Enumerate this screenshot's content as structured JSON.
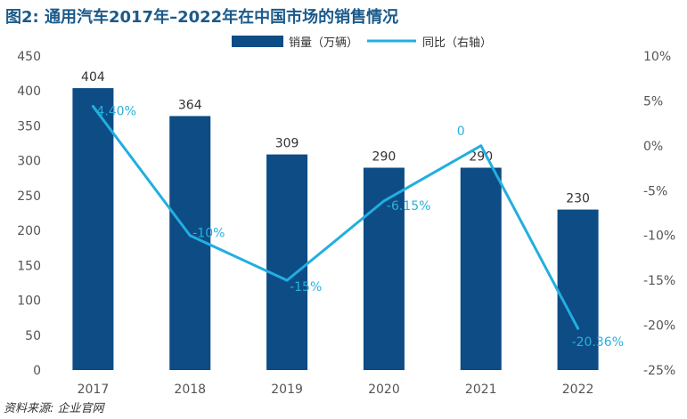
{
  "title": "图2: 通用汽车2017年–2022年在中国市场的销售情况",
  "source": "资料来源: 企业官网",
  "chart_data": {
    "type": "bar",
    "categories": [
      "2017",
      "2018",
      "2019",
      "2020",
      "2021",
      "2022"
    ],
    "series": [
      {
        "name": "销量（万辆）",
        "type": "bar",
        "axis": "left",
        "values": [
          404,
          364,
          309,
          290,
          290,
          230
        ],
        "labels": [
          "404",
          "364",
          "309",
          "290",
          "290",
          "230"
        ],
        "color": "#0d4c84"
      },
      {
        "name": "同比（右轴）",
        "type": "line",
        "axis": "right",
        "values": [
          4.4,
          -10,
          -15,
          -6.15,
          0,
          -20.36
        ],
        "labels": [
          "4.40%",
          "-10%",
          "-15%",
          "-6.15%",
          "0",
          "-20.36%"
        ],
        "color": "#22aee0"
      }
    ],
    "y_left": {
      "lim": [
        0,
        450
      ],
      "ticks": [
        "0",
        "50",
        "100",
        "150",
        "200",
        "250",
        "300",
        "350",
        "400",
        "450"
      ]
    },
    "y_right": {
      "lim": [
        -25,
        10
      ],
      "ticks": [
        "-25%",
        "-20%",
        "-15%",
        "-10%",
        "-5%",
        "0%",
        "5%",
        "10%"
      ]
    },
    "legend_position": "top-center",
    "grid": false
  }
}
